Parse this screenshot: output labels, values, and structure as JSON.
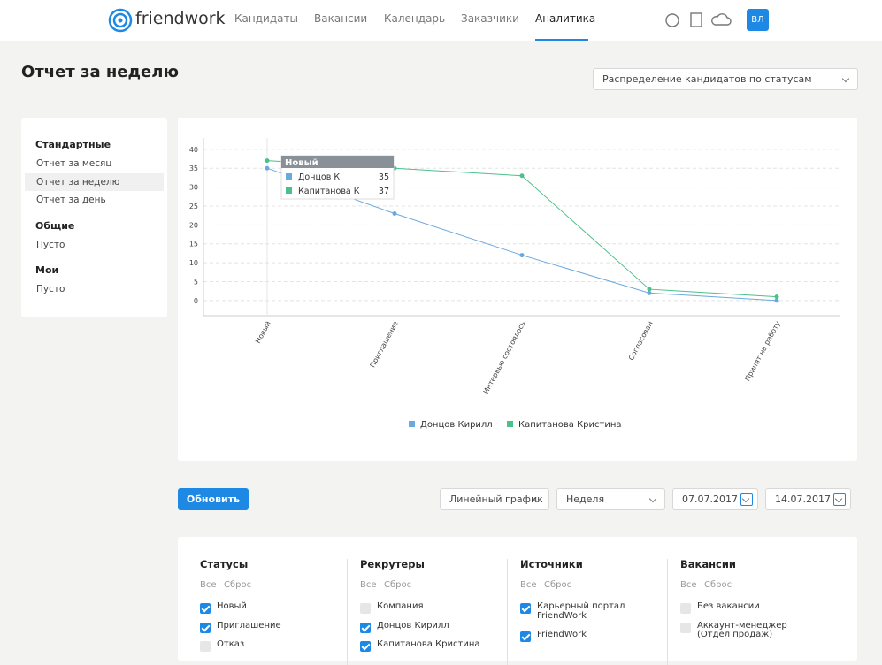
{
  "header": {
    "logo": "friendwork",
    "menu": [
      "Кандидаты",
      "Вакансии",
      "Календарь",
      "Заказчики",
      "Аналитика"
    ],
    "active": 4,
    "avatar": "ВЛ"
  },
  "page": {
    "title": "Отчет за неделю",
    "report_select": "Распределение кандидатов по статусам"
  },
  "sidebar": [
    {
      "title": "Стандартные",
      "items": [
        "Отчет за месяц",
        "Отчет за неделю",
        "Отчет за день"
      ]
    },
    {
      "title": "Общие",
      "items": [
        "Пусто"
      ]
    },
    {
      "title": "Мои",
      "items": [
        "Пусто"
      ]
    }
  ],
  "sidebar_active": [
    0,
    1
  ],
  "chart_data": {
    "type": "line",
    "categories": [
      "Новый",
      "Приглашение",
      "Интервью состоялось",
      "Согласован",
      "Принят на работу"
    ],
    "series": [
      {
        "name": "Донцов Кирилл",
        "color": "#6aa8e0",
        "values": [
          35,
          23,
          12,
          2,
          0
        ]
      },
      {
        "name": "Капитанова Кристина",
        "color": "#4cc08a",
        "values": [
          37,
          35,
          33,
          3,
          1
        ]
      }
    ],
    "ylim": [
      -4,
      43
    ],
    "yticks": [
      0,
      5,
      10,
      15,
      20,
      25,
      30,
      35,
      40
    ],
    "grid": true,
    "legend": "bottom",
    "tooltip": {
      "title": "Новый",
      "rows": [
        {
          "name": "Донцов К",
          "value": 35
        },
        {
          "name": "Капитанова К",
          "value": 37
        }
      ]
    }
  },
  "controls": {
    "button": "Обновить",
    "chart_type": "Линейный график",
    "period": "Неделя",
    "date_from": "07.07.2017",
    "date_to": "14.07.2017"
  },
  "filters": {
    "all": "Все",
    "reset": "Сброс",
    "columns": [
      {
        "title": "Статусы",
        "items": [
          {
            "label": "Новый",
            "checked": true
          },
          {
            "label": "Приглашение",
            "checked": true
          },
          {
            "label": "Отказ",
            "checked": false
          }
        ]
      },
      {
        "title": "Рекрутеры",
        "items": [
          {
            "label": "Компания",
            "checked": false
          },
          {
            "label": "Донцов Кирилл",
            "checked": true
          },
          {
            "label": "Капитанова Кристина",
            "checked": true
          }
        ]
      },
      {
        "title": "Источники",
        "items": [
          {
            "label": "Карьерный портал FriendWork",
            "checked": true
          },
          {
            "label": "FriendWork",
            "checked": true
          }
        ]
      },
      {
        "title": "Вакансии",
        "items": [
          {
            "label": "Без вакансии",
            "checked": false
          },
          {
            "label": "Аккаунт-менеджер (Отдел продаж)",
            "checked": false
          }
        ]
      }
    ]
  }
}
